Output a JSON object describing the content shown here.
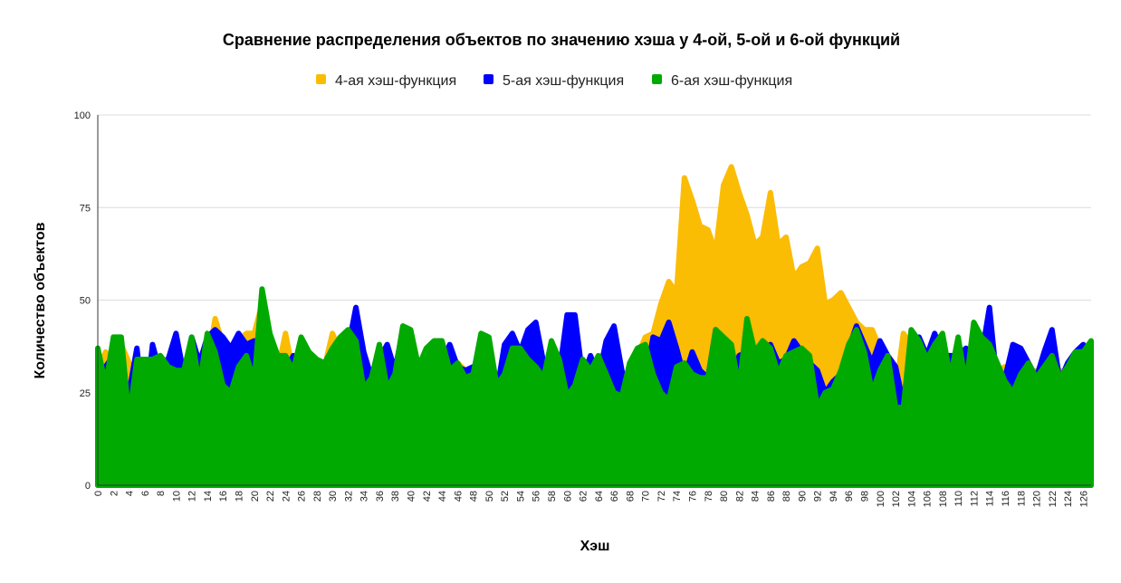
{
  "chart_data": {
    "type": "area",
    "title": "Сравнение распределения объектов по значению хэша у 4-ой, 5-ой и 6-ой функций",
    "xlabel": "Хэш",
    "ylabel": "Количество объектов",
    "ylim": [
      0,
      100
    ],
    "yticks": [
      "0",
      "25",
      "50",
      "75",
      "100"
    ],
    "xlim": [
      0,
      127
    ],
    "legend_position": "top",
    "grid": true,
    "x": [
      0,
      1,
      2,
      3,
      4,
      5,
      6,
      7,
      8,
      9,
      10,
      11,
      12,
      13,
      14,
      15,
      16,
      17,
      18,
      19,
      20,
      21,
      22,
      23,
      24,
      25,
      26,
      27,
      28,
      29,
      30,
      31,
      32,
      33,
      34,
      35,
      36,
      37,
      38,
      39,
      40,
      41,
      42,
      43,
      44,
      45,
      46,
      47,
      48,
      49,
      50,
      51,
      52,
      53,
      54,
      55,
      56,
      57,
      58,
      59,
      60,
      61,
      62,
      63,
      64,
      65,
      66,
      67,
      68,
      69,
      70,
      71,
      72,
      73,
      74,
      75,
      76,
      77,
      78,
      79,
      80,
      81,
      82,
      83,
      84,
      85,
      86,
      87,
      88,
      89,
      90,
      91,
      92,
      93,
      94,
      95,
      96,
      97,
      98,
      99,
      100,
      101,
      102,
      103,
      104,
      105,
      106,
      107,
      108,
      109,
      110,
      111,
      112,
      113,
      114,
      115,
      116,
      117,
      118,
      119,
      120,
      121,
      122,
      123,
      124,
      125,
      126,
      127
    ],
    "xtick_labels": [
      "0",
      "2",
      "4",
      "6",
      "8",
      "10",
      "12",
      "14",
      "16",
      "18",
      "20",
      "22",
      "24",
      "26",
      "28",
      "30",
      "32",
      "34",
      "36",
      "38",
      "40",
      "42",
      "44",
      "46",
      "48",
      "50",
      "52",
      "54",
      "56",
      "58",
      "60",
      "62",
      "64",
      "66",
      "68",
      "70",
      "72",
      "74",
      "76",
      "78",
      "80",
      "82",
      "84",
      "86",
      "88",
      "90",
      "92",
      "94",
      "96",
      "98",
      "100",
      "102",
      "104",
      "106",
      "108",
      "110",
      "112",
      "114",
      "116",
      "118",
      "120",
      "122",
      "124",
      "126"
    ],
    "series": [
      {
        "name": "4-ая хэш-функция",
        "color": "#fbbc04",
        "values": [
          30,
          36,
          28,
          38,
          33,
          18,
          33,
          33,
          34,
          34,
          31,
          29,
          30,
          30,
          32,
          45,
          38,
          32,
          39,
          41,
          41,
          49,
          35,
          31,
          41,
          30,
          34,
          33,
          27,
          32,
          41,
          36,
          39,
          41,
          27,
          27,
          36,
          32,
          29,
          30,
          34,
          33,
          31,
          35,
          36,
          32,
          33,
          31,
          29,
          32,
          37,
          25,
          35,
          31,
          37,
          34,
          30,
          29,
          33,
          29,
          35,
          27,
          31,
          33,
          31,
          29,
          28,
          27,
          31,
          35,
          40,
          41,
          49,
          55,
          52,
          83,
          77,
          70,
          69,
          63,
          81,
          86,
          79,
          73,
          65,
          67,
          79,
          65,
          67,
          56,
          59,
          60,
          64,
          49,
          50,
          52,
          48,
          44,
          42,
          42,
          37,
          33,
          25,
          41,
          38,
          34,
          33,
          31,
          29,
          30,
          29,
          36,
          37,
          33,
          34,
          31,
          32,
          28,
          29,
          30,
          31,
          30,
          32,
          31,
          30,
          32,
          29,
          35
        ]
      },
      {
        "name": "5-ая хэш-функция",
        "color": "#0000ff",
        "values": [
          11,
          32,
          35,
          31,
          25,
          37,
          18,
          38,
          30,
          34,
          41,
          30,
          40,
          33,
          40,
          42,
          40,
          37,
          41,
          38,
          39,
          28,
          35,
          30,
          31,
          35,
          31,
          33,
          29,
          27,
          32,
          30,
          37,
          48,
          36,
          29,
          34,
          38,
          31,
          42,
          37,
          28,
          34,
          31,
          33,
          38,
          32,
          31,
          32,
          29,
          27,
          25,
          38,
          41,
          36,
          42,
          44,
          33,
          33,
          30,
          46,
          46,
          29,
          35,
          29,
          39,
          43,
          31,
          22,
          33,
          28,
          40,
          39,
          44,
          37,
          29,
          36,
          31,
          29,
          42,
          38,
          26,
          35,
          36,
          36,
          29,
          38,
          33,
          34,
          39,
          36,
          33,
          31,
          25,
          28,
          30,
          37,
          43,
          38,
          33,
          39,
          35,
          32,
          22,
          32,
          40,
          35,
          41,
          35,
          35,
          35,
          37,
          35,
          35,
          48,
          27,
          29,
          38,
          37,
          33,
          29,
          36,
          42,
          28,
          33,
          36,
          38,
          35
        ]
      },
      {
        "name": "6-ая хэш-функция",
        "color": "#00aa00",
        "values": [
          37,
          27,
          40,
          40,
          18,
          34,
          34,
          34,
          35,
          32,
          31,
          31,
          40,
          27,
          41,
          36,
          27,
          25,
          32,
          35,
          28,
          53,
          41,
          35,
          35,
          31,
          40,
          36,
          34,
          33,
          37,
          40,
          42,
          39,
          26,
          29,
          38,
          26,
          30,
          43,
          42,
          32,
          37,
          39,
          39,
          31,
          33,
          29,
          30,
          41,
          40,
          27,
          30,
          37,
          37,
          34,
          32,
          29,
          39,
          34,
          24,
          27,
          34,
          31,
          35,
          30,
          25,
          24,
          33,
          37,
          38,
          30,
          25,
          23,
          32,
          33,
          30,
          29,
          29,
          42,
          40,
          38,
          26,
          45,
          36,
          39,
          37,
          30,
          35,
          36,
          37,
          35,
          21,
          25,
          26,
          31,
          38,
          42,
          36,
          25,
          31,
          35,
          21,
          21,
          42,
          39,
          34,
          38,
          41,
          29,
          40,
          27,
          44,
          40,
          38,
          33,
          28,
          25,
          30,
          33,
          29,
          32,
          35,
          29,
          32,
          36,
          36,
          39
        ]
      }
    ]
  }
}
